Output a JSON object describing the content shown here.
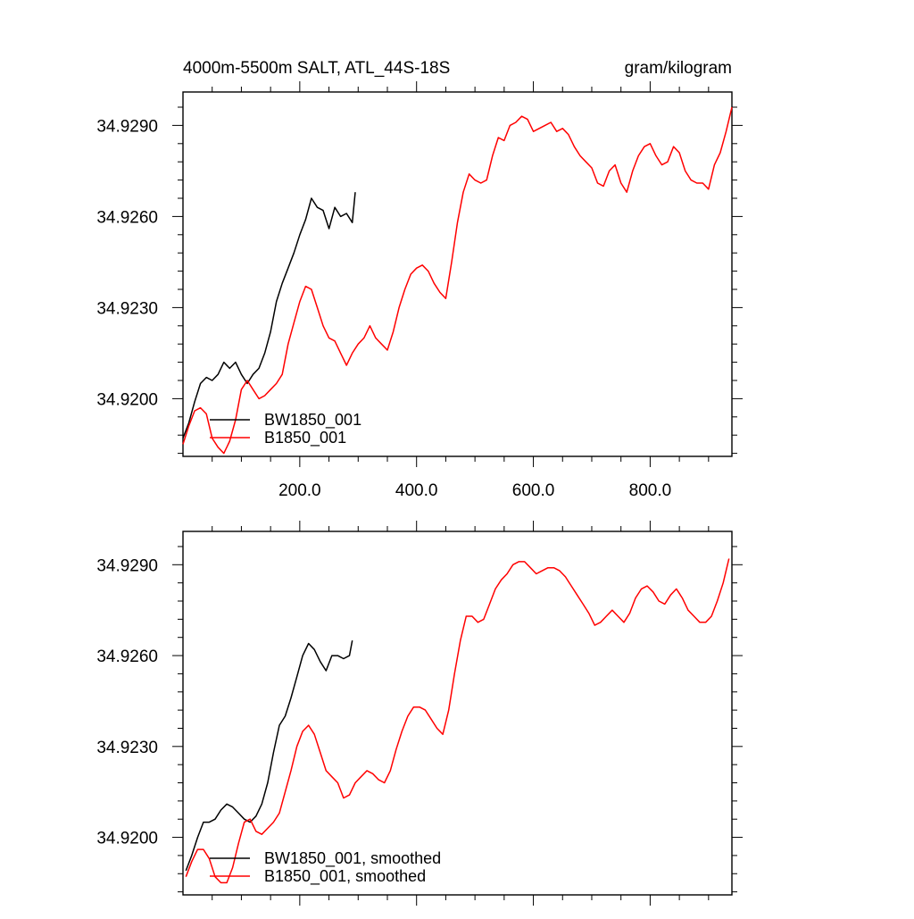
{
  "header": {
    "left_title": "4000m-5500m SALT, ATL_44S-18S",
    "right_title": "gram/kilogram"
  },
  "colors": {
    "bw": "#000000",
    "b": "#ff0000"
  },
  "chart_data": [
    {
      "type": "line",
      "title": "4000m-5500m SALT, ATL_44S-18S",
      "units": "gram/kilogram",
      "xlim": [
        0,
        940
      ],
      "ylim": [
        34.9181,
        34.9301
      ],
      "x_ticks": [
        200,
        400,
        600,
        800
      ],
      "x_tick_labels": [
        "200.0",
        "400.0",
        "600.0",
        "800.0"
      ],
      "y_ticks": [
        34.92,
        34.923,
        34.926,
        34.929
      ],
      "y_tick_labels": [
        "34.9200",
        "34.9230",
        "34.9260",
        "34.9290"
      ],
      "grid": false,
      "legend": "bottom-left",
      "series": [
        {
          "name": "BW1850_001",
          "color": "#000000",
          "x": [
            0,
            10,
            20,
            30,
            40,
            50,
            60,
            70,
            80,
            90,
            100,
            110,
            120,
            130,
            140,
            150,
            160,
            170,
            180,
            190,
            200,
            210,
            220,
            230,
            240,
            250,
            260,
            270,
            280,
            290,
            295
          ],
          "y": [
            34.9187,
            34.9192,
            34.9199,
            34.9205,
            34.9207,
            34.9206,
            34.9208,
            34.9212,
            34.921,
            34.9212,
            34.9208,
            34.9205,
            34.9208,
            34.921,
            34.9215,
            34.9222,
            34.9232,
            34.9238,
            34.9243,
            34.9248,
            34.9254,
            34.9259,
            34.9266,
            34.9263,
            34.9262,
            34.9256,
            34.9263,
            34.926,
            34.9261,
            34.9258,
            34.9268
          ]
        },
        {
          "name": "B1850_001",
          "color": "#ff0000",
          "x": [
            0,
            10,
            20,
            30,
            40,
            50,
            60,
            70,
            80,
            90,
            100,
            110,
            120,
            130,
            140,
            150,
            160,
            170,
            180,
            190,
            200,
            210,
            220,
            230,
            240,
            250,
            260,
            270,
            280,
            290,
            300,
            310,
            320,
            330,
            340,
            350,
            360,
            370,
            380,
            390,
            400,
            410,
            420,
            430,
            440,
            450,
            460,
            470,
            480,
            490,
            500,
            510,
            520,
            530,
            540,
            550,
            560,
            570,
            580,
            590,
            600,
            610,
            620,
            630,
            640,
            650,
            660,
            670,
            680,
            690,
            700,
            710,
            720,
            730,
            740,
            750,
            760,
            770,
            780,
            790,
            800,
            810,
            820,
            830,
            840,
            850,
            860,
            870,
            880,
            890,
            900,
            910,
            920,
            930,
            940
          ],
          "y": [
            34.9185,
            34.9191,
            34.9196,
            34.9197,
            34.9195,
            34.9187,
            34.9184,
            34.9182,
            34.9186,
            34.9193,
            34.9203,
            34.9206,
            34.9203,
            34.92,
            34.9201,
            34.9203,
            34.9205,
            34.9208,
            34.9218,
            34.9225,
            34.9232,
            34.9237,
            34.9236,
            34.923,
            34.9224,
            34.922,
            34.9219,
            34.9215,
            34.9211,
            34.9215,
            34.9218,
            34.922,
            34.9224,
            34.922,
            34.9218,
            34.9216,
            34.9222,
            34.923,
            34.9236,
            34.9241,
            34.9243,
            34.9244,
            34.9242,
            34.9238,
            34.9235,
            34.9233,
            34.9245,
            34.9258,
            34.9268,
            34.9274,
            34.9272,
            34.9271,
            34.9272,
            34.928,
            34.9286,
            34.9285,
            34.929,
            34.9291,
            34.9293,
            34.9292,
            34.9288,
            34.9289,
            34.929,
            34.9291,
            34.9288,
            34.9289,
            34.9287,
            34.9283,
            34.928,
            34.9278,
            34.9276,
            34.9271,
            34.927,
            34.9275,
            34.9277,
            34.9271,
            34.9268,
            34.9275,
            34.928,
            34.9283,
            34.9284,
            34.928,
            34.9277,
            34.9278,
            34.9283,
            34.9281,
            34.9275,
            34.9272,
            34.9271,
            34.9271,
            34.9269,
            34.9277,
            34.9281,
            34.9288,
            34.9296
          ]
        }
      ]
    },
    {
      "type": "line",
      "xlim": [
        0,
        940
      ],
      "ylim": [
        34.9181,
        34.9301
      ],
      "y_ticks": [
        34.92,
        34.923,
        34.926,
        34.929
      ],
      "y_tick_labels": [
        "34.9200",
        "34.9230",
        "34.9260",
        "34.9290"
      ],
      "grid": false,
      "legend": "bottom-left",
      "series": [
        {
          "name": "BW1850_001, smoothed",
          "color": "#000000",
          "x": [
            5,
            15,
            25,
            35,
            45,
            55,
            65,
            75,
            85,
            95,
            105,
            115,
            125,
            135,
            145,
            155,
            165,
            175,
            185,
            195,
            205,
            215,
            225,
            235,
            245,
            255,
            265,
            275,
            285,
            290
          ],
          "y": [
            34.9189,
            34.9194,
            34.92,
            34.9205,
            34.9205,
            34.9206,
            34.9209,
            34.9211,
            34.921,
            34.9208,
            34.9206,
            34.9205,
            34.9207,
            34.9211,
            34.9218,
            34.9228,
            34.9237,
            34.924,
            34.9246,
            34.9253,
            34.926,
            34.9264,
            34.9262,
            34.9258,
            34.9255,
            34.926,
            34.926,
            34.9259,
            34.926,
            34.9265
          ]
        },
        {
          "name": "B1850_001, smoothed",
          "color": "#ff0000",
          "x": [
            5,
            15,
            25,
            35,
            45,
            55,
            65,
            75,
            85,
            95,
            105,
            115,
            125,
            135,
            145,
            155,
            165,
            175,
            185,
            195,
            205,
            215,
            225,
            235,
            245,
            255,
            265,
            275,
            285,
            295,
            305,
            315,
            325,
            335,
            345,
            355,
            365,
            375,
            385,
            395,
            405,
            415,
            425,
            435,
            445,
            455,
            465,
            475,
            485,
            495,
            505,
            515,
            525,
            535,
            545,
            555,
            565,
            575,
            585,
            595,
            605,
            615,
            625,
            635,
            645,
            655,
            665,
            675,
            685,
            695,
            705,
            715,
            725,
            735,
            745,
            755,
            765,
            775,
            785,
            795,
            805,
            815,
            825,
            835,
            845,
            855,
            865,
            875,
            885,
            895,
            905,
            915,
            925,
            935
          ],
          "y": [
            34.9187,
            34.9192,
            34.9196,
            34.9196,
            34.9193,
            34.9187,
            34.9185,
            34.9185,
            34.919,
            34.9198,
            34.9205,
            34.9206,
            34.9202,
            34.9201,
            34.9203,
            34.9205,
            34.9208,
            34.9215,
            34.9222,
            34.923,
            34.9235,
            34.9237,
            34.9234,
            34.9228,
            34.9222,
            34.922,
            34.9218,
            34.9213,
            34.9214,
            34.9218,
            34.922,
            34.9222,
            34.9221,
            34.9219,
            34.9218,
            34.9222,
            34.9229,
            34.9235,
            34.924,
            34.9243,
            34.9243,
            34.9242,
            34.9239,
            34.9236,
            34.9234,
            34.9242,
            34.9254,
            34.9265,
            34.9273,
            34.9273,
            34.9271,
            34.9272,
            34.9277,
            34.9282,
            34.9285,
            34.9287,
            34.929,
            34.9291,
            34.9291,
            34.9289,
            34.9287,
            34.9288,
            34.9289,
            34.9289,
            34.9288,
            34.9286,
            34.9283,
            34.928,
            34.9277,
            34.9274,
            34.927,
            34.9271,
            34.9273,
            34.9275,
            34.9273,
            34.9271,
            34.9274,
            34.9279,
            34.9282,
            34.9283,
            34.9281,
            34.9278,
            34.9277,
            34.928,
            34.9282,
            34.9279,
            34.9275,
            34.9273,
            34.9271,
            34.9271,
            34.9273,
            34.9278,
            34.9284,
            34.9292
          ]
        }
      ]
    }
  ]
}
